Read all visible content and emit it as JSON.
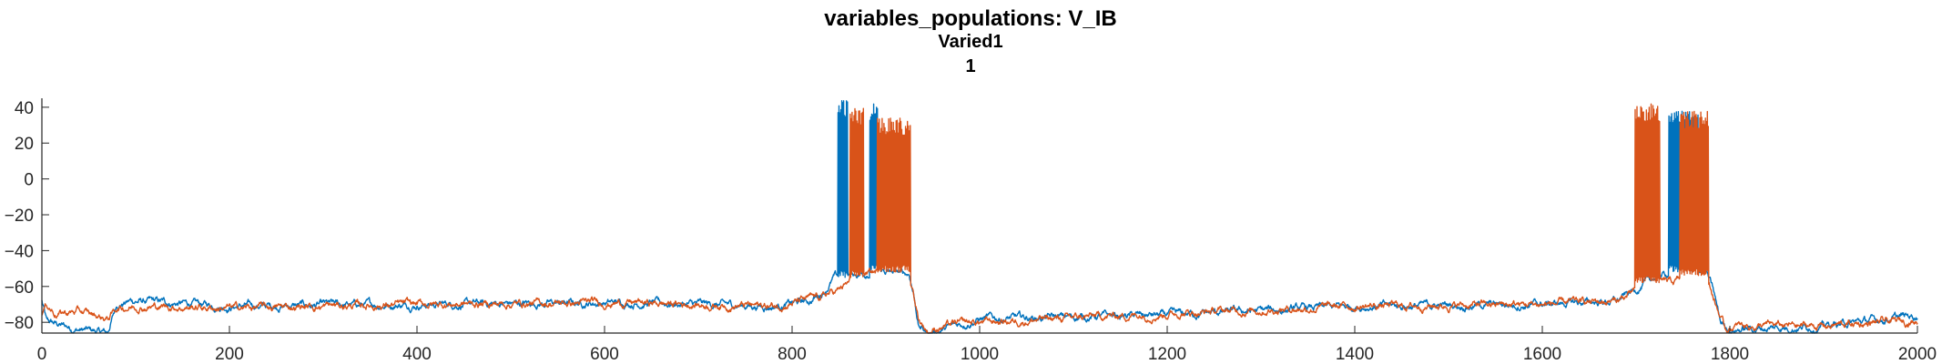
{
  "chart_data": {
    "type": "line",
    "title": "variables_populations: V_IB",
    "subtitle_1": "Varied1",
    "subtitle_2": "1",
    "xlabel": "",
    "ylabel": "",
    "xlim": [
      0,
      2000
    ],
    "ylim": [
      -86,
      45
    ],
    "x_ticks": [
      0,
      200,
      400,
      600,
      800,
      1000,
      1200,
      1400,
      1600,
      1800,
      2000
    ],
    "y_ticks": [
      40,
      20,
      0,
      -20,
      -40,
      -60,
      -80
    ],
    "grid": false,
    "legend": "none",
    "series": [
      {
        "color": "#0072BD",
        "baseline": [
          [
            0,
            -68
          ],
          [
            5,
            -80
          ],
          [
            40,
            -84
          ],
          [
            70,
            -86
          ],
          [
            75,
            -78
          ],
          [
            80,
            -70
          ],
          [
            95,
            -68
          ],
          [
            200,
            -71
          ],
          [
            400,
            -70
          ],
          [
            620,
            -69
          ],
          [
            780,
            -71
          ],
          [
            820,
            -68
          ],
          [
            835,
            -62
          ],
          [
            845,
            -55
          ],
          [
            860,
            -54
          ],
          [
            880,
            -52
          ],
          [
            900,
            -52
          ],
          [
            925,
            -53
          ],
          [
            930,
            -65
          ],
          [
            935,
            -82
          ],
          [
            945,
            -86
          ],
          [
            960,
            -84
          ],
          [
            1000,
            -78
          ],
          [
            1200,
            -76
          ],
          [
            1400,
            -71
          ],
          [
            1600,
            -70
          ],
          [
            1680,
            -68
          ],
          [
            1705,
            -60
          ],
          [
            1720,
            -55
          ],
          [
            1740,
            -52
          ],
          [
            1775,
            -52
          ],
          [
            1782,
            -62
          ],
          [
            1790,
            -80
          ],
          [
            1800,
            -84
          ],
          [
            1900,
            -82
          ],
          [
            2000,
            -76
          ]
        ],
        "bursts": [
          {
            "start": 849,
            "end": 859,
            "peak": 44,
            "trough": -55
          },
          {
            "start": 883,
            "end": 891,
            "peak": 42,
            "trough": -52
          },
          {
            "start": 1735,
            "end": 1766,
            "peak": 38,
            "trough": -52
          }
        ]
      },
      {
        "color": "#D95319",
        "baseline": [
          [
            0,
            -75
          ],
          [
            5,
            -70
          ],
          [
            15,
            -75
          ],
          [
            40,
            -74
          ],
          [
            70,
            -78
          ],
          [
            80,
            -72
          ],
          [
            100,
            -71
          ],
          [
            200,
            -72
          ],
          [
            400,
            -70
          ],
          [
            620,
            -69
          ],
          [
            780,
            -71
          ],
          [
            830,
            -66
          ],
          [
            850,
            -62
          ],
          [
            870,
            -55
          ],
          [
            890,
            -52
          ],
          [
            920,
            -52
          ],
          [
            928,
            -60
          ],
          [
            935,
            -78
          ],
          [
            945,
            -85
          ],
          [
            960,
            -82
          ],
          [
            1000,
            -80
          ],
          [
            1200,
            -75
          ],
          [
            1400,
            -71
          ],
          [
            1600,
            -70
          ],
          [
            1680,
            -68
          ],
          [
            1700,
            -63
          ],
          [
            1720,
            -58
          ],
          [
            1740,
            -58
          ],
          [
            1760,
            -54
          ],
          [
            1778,
            -58
          ],
          [
            1785,
            -70
          ],
          [
            1795,
            -84
          ],
          [
            1810,
            -82
          ],
          [
            1900,
            -82
          ],
          [
            2000,
            -79
          ]
        ],
        "bursts": [
          {
            "start": 862,
            "end": 876,
            "peak": 40,
            "trough": -55
          },
          {
            "start": 891,
            "end": 926,
            "peak": 34,
            "trough": -52
          },
          {
            "start": 1699,
            "end": 1725,
            "peak": 42,
            "trough": -58
          },
          {
            "start": 1747,
            "end": 1777,
            "peak": 38,
            "trough": -54
          }
        ]
      }
    ]
  }
}
